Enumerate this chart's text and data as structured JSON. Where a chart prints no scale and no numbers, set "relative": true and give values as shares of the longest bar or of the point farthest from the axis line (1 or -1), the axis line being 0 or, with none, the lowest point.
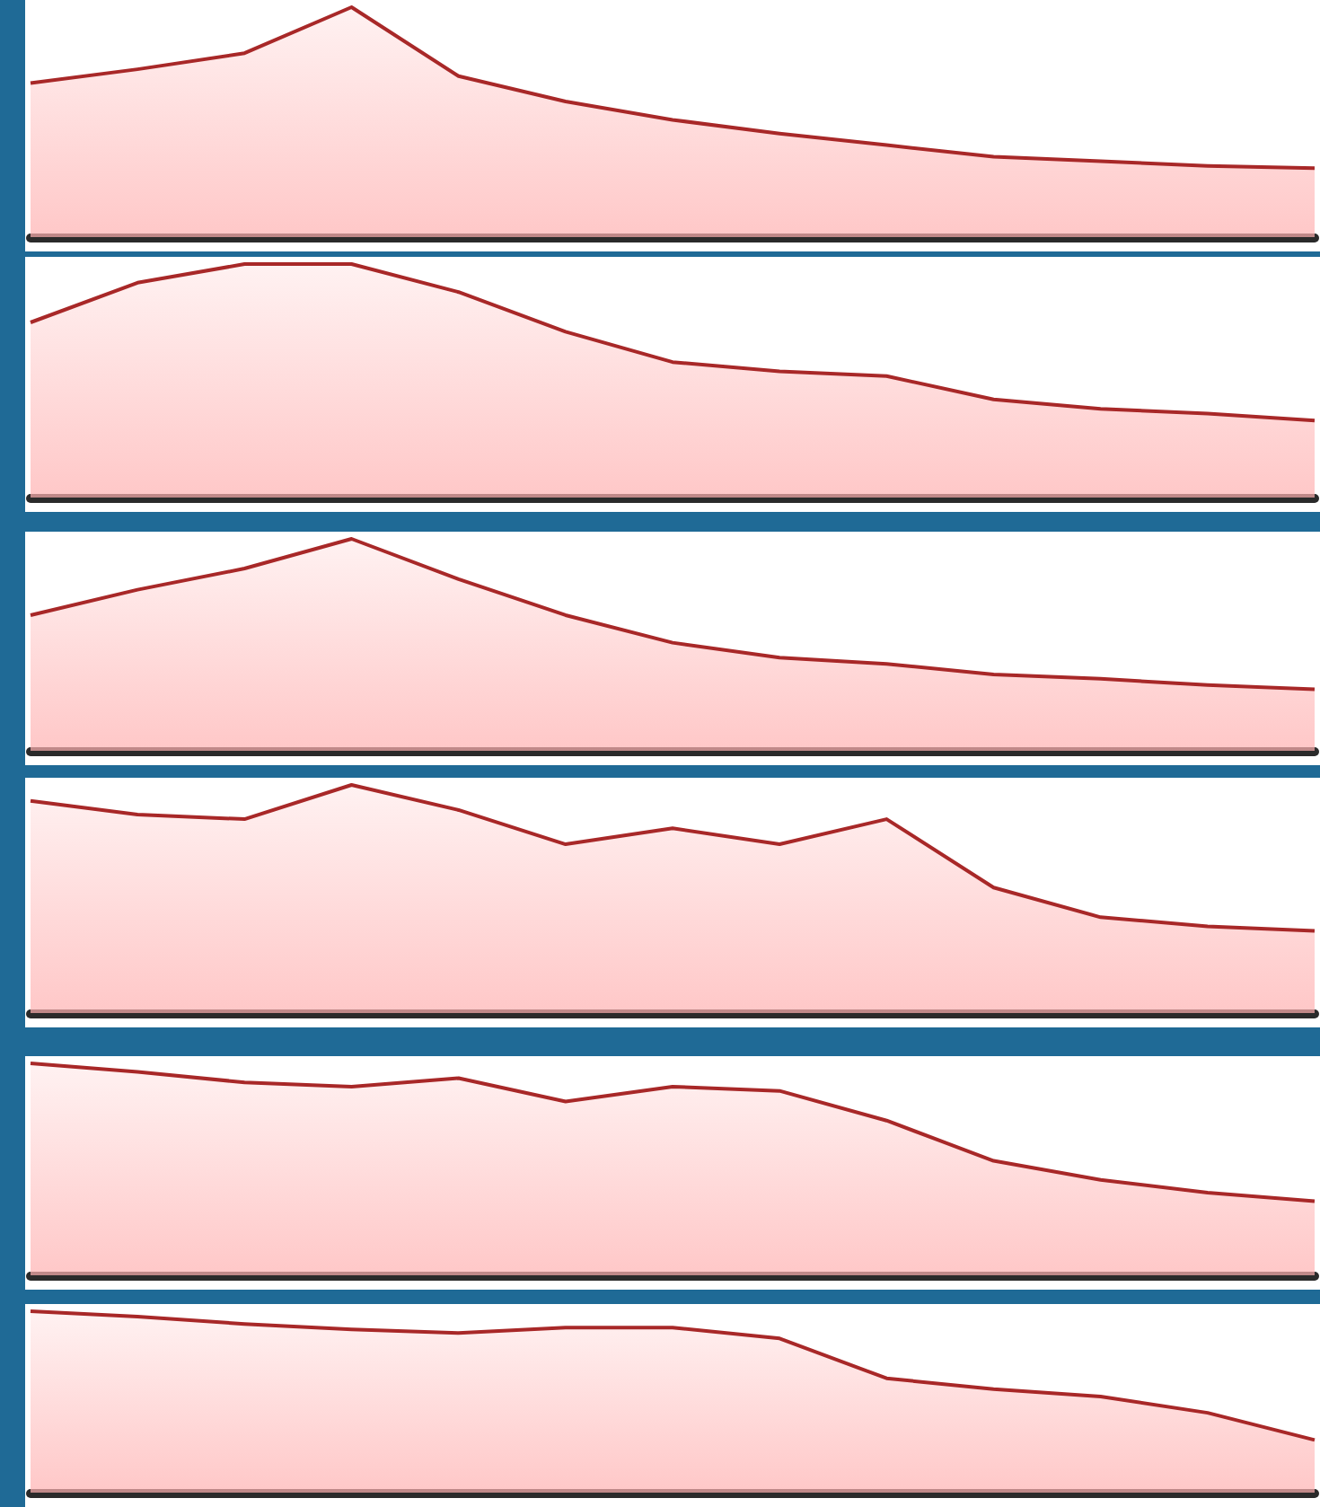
{
  "chart_data": [
    {
      "type": "area",
      "relative": true,
      "categories": [
        null,
        null,
        null,
        null,
        null,
        null,
        null,
        null,
        null,
        null,
        null,
        null,
        null
      ],
      "series": [
        {
          "color": "#a82828",
          "values": [
            0.67,
            0.73,
            0.8,
            1,
            0.7,
            0.59,
            0.51,
            0.45,
            0.4,
            0.35,
            0.33,
            0.31,
            0.3
          ]
        }
      ]
    },
    {
      "type": "area",
      "relative": true,
      "categories": [
        null,
        null,
        null,
        null,
        null,
        null,
        null,
        null,
        null,
        null,
        null,
        null,
        null
      ],
      "series": [
        {
          "color": "#a82828",
          "values": [
            0.75,
            0.92,
            1,
            1,
            0.88,
            0.71,
            0.58,
            0.54,
            0.52,
            0.42,
            0.38,
            0.36,
            0.33
          ]
        }
      ]
    },
    {
      "type": "area",
      "relative": true,
      "categories": [
        null,
        null,
        null,
        null,
        null,
        null,
        null,
        null,
        null,
        null,
        null,
        null,
        null
      ],
      "series": [
        {
          "color": "#a82828",
          "values": [
            0.64,
            0.76,
            0.86,
            1,
            0.81,
            0.64,
            0.51,
            0.44,
            0.41,
            0.36,
            0.34,
            0.31,
            0.29
          ]
        }
      ]
    },
    {
      "type": "area",
      "relative": true,
      "categories": [
        null,
        null,
        null,
        null,
        null,
        null,
        null,
        null,
        null,
        null,
        null,
        null,
        null
      ],
      "series": [
        {
          "color": "#a82828",
          "values": [
            0.93,
            0.87,
            0.85,
            1,
            0.89,
            0.74,
            0.81,
            0.74,
            0.85,
            0.55,
            0.42,
            0.38,
            0.36
          ]
        }
      ]
    },
    {
      "type": "area",
      "relative": true,
      "categories": [
        null,
        null,
        null,
        null,
        null,
        null,
        null,
        null,
        null,
        null,
        null,
        null,
        null
      ],
      "series": [
        {
          "color": "#a82828",
          "values": [
            1,
            0.96,
            0.91,
            0.89,
            0.93,
            0.82,
            0.89,
            0.87,
            0.73,
            0.54,
            0.45,
            0.39,
            0.35
          ]
        }
      ]
    },
    {
      "type": "area",
      "relative": true,
      "categories": [
        null,
        null,
        null,
        null,
        null,
        null,
        null,
        null,
        null,
        null,
        null,
        null,
        null
      ],
      "series": [
        {
          "color": "#a82828",
          "values": [
            1,
            0.97,
            0.93,
            0.9,
            0.88,
            0.91,
            0.91,
            0.85,
            0.63,
            0.57,
            0.53,
            0.44,
            0.29
          ]
        }
      ]
    }
  ]
}
